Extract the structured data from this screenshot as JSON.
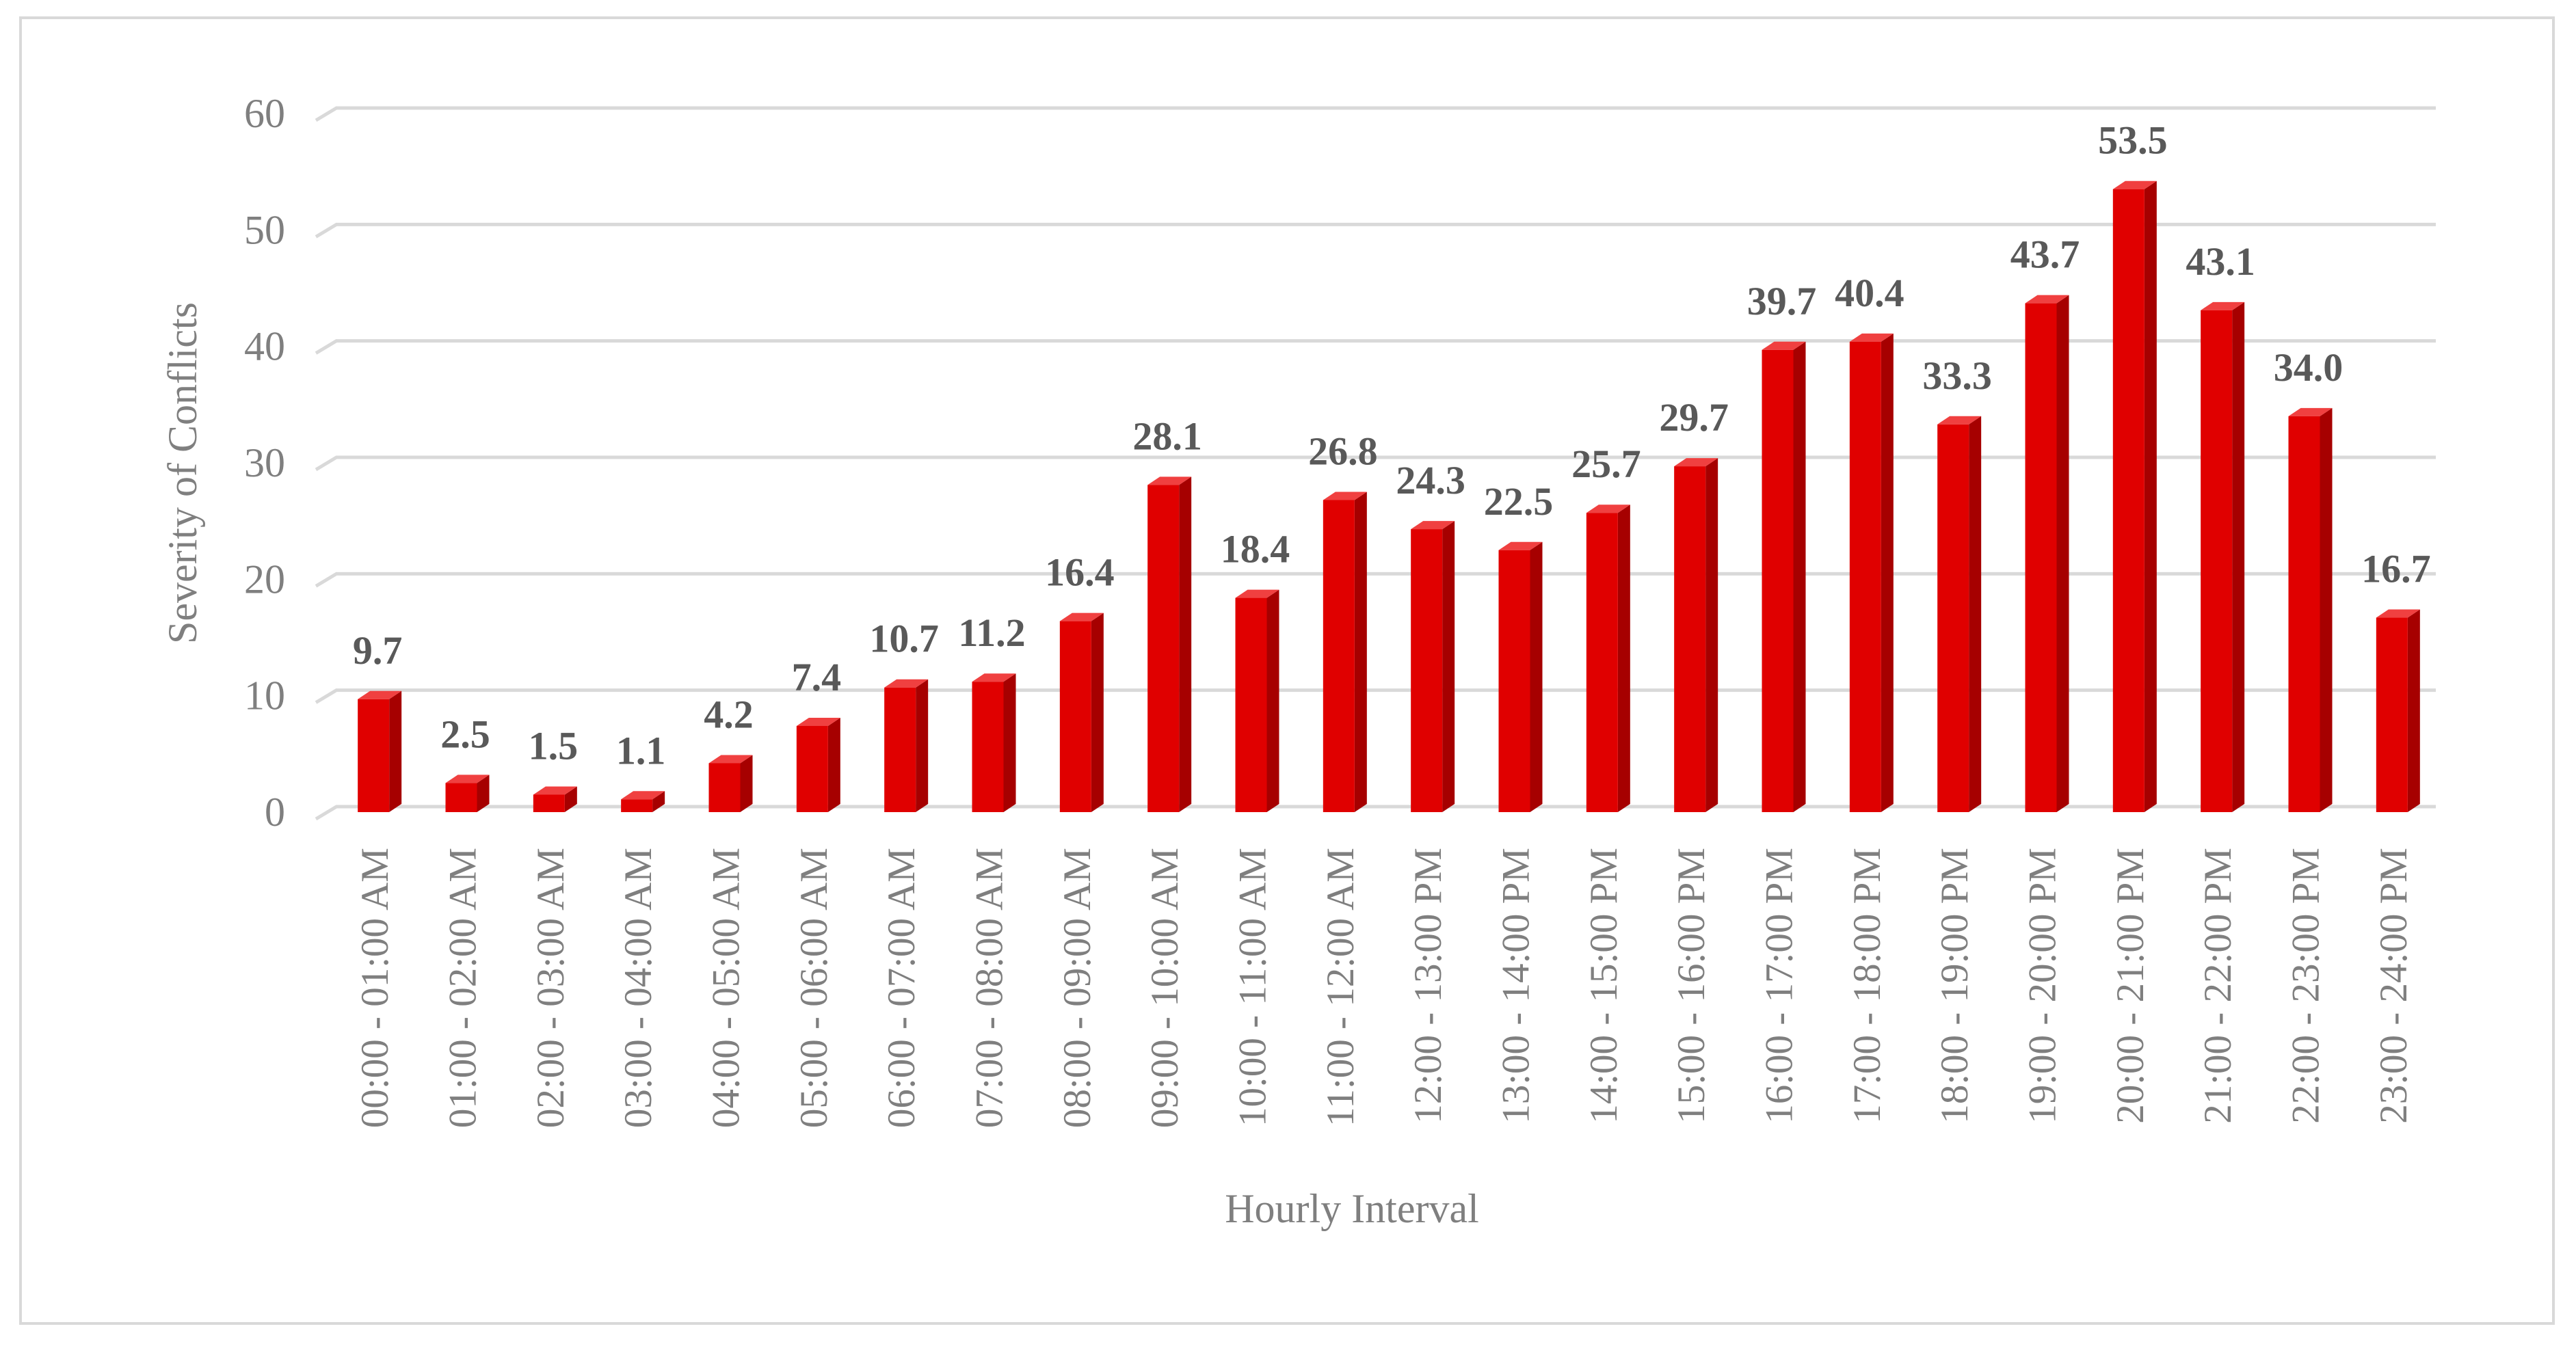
{
  "chart_data": {
    "type": "bar",
    "title": "",
    "xlabel": "Hourly Interval",
    "ylabel": "Severity of Conflicts",
    "ylim": [
      0,
      60
    ],
    "yticks": [
      0,
      10,
      20,
      30,
      40,
      50,
      60
    ],
    "grid": true,
    "legend": "none",
    "bar_style": "3d-column",
    "colors": {
      "bar_front": "#e00000",
      "bar_side": "#a60000",
      "bar_top": "#f04040",
      "gridline": "#d9d9d9",
      "axis_text": "#7f7f7f",
      "data_label": "#595959"
    },
    "categories": [
      "00:00 - 01:00 AM",
      "01:00 - 02:00 AM",
      "02:00 - 03:00 AM",
      "03:00 - 04:00 AM",
      "04:00 - 05:00 AM",
      "05:00 - 06:00 AM",
      "06:00 - 07:00 AM",
      "07:00 - 08:00 AM",
      "08:00 - 09:00 AM",
      "09:00 - 10:00 AM",
      "10:00 - 11:00 AM",
      "11:00 - 12:00 AM",
      "12:00 - 13:00 PM",
      "13:00 - 14:00 PM",
      "14:00 - 15:00 PM",
      "15:00 - 16:00 PM",
      "16:00 - 17:00 PM",
      "17:00 - 18:00 PM",
      "18:00 - 19:00 PM",
      "19:00 - 20:00 PM",
      "20:00 - 21:00 PM",
      "21:00 - 22:00 PM",
      "22:00 - 23:00 PM",
      "23:00 - 24:00 PM"
    ],
    "values": [
      9.7,
      2.5,
      1.5,
      1.1,
      4.2,
      7.4,
      10.7,
      11.2,
      16.4,
      28.1,
      18.4,
      26.8,
      24.3,
      22.5,
      25.7,
      29.7,
      39.7,
      40.4,
      33.3,
      43.7,
      53.5,
      43.1,
      34.0,
      16.7
    ],
    "data_labels": [
      "9.7",
      "2.5",
      "1.5",
      "1.1",
      "4.2",
      "7.4",
      "10.7",
      "11.2",
      "16.4",
      "28.1",
      "18.4",
      "26.8",
      "24.3",
      "22.5",
      "25.7",
      "29.7",
      "39.7",
      "40.4",
      "33.3",
      "43.7",
      "53.5",
      "43.1",
      "34.0",
      "16.7"
    ]
  }
}
